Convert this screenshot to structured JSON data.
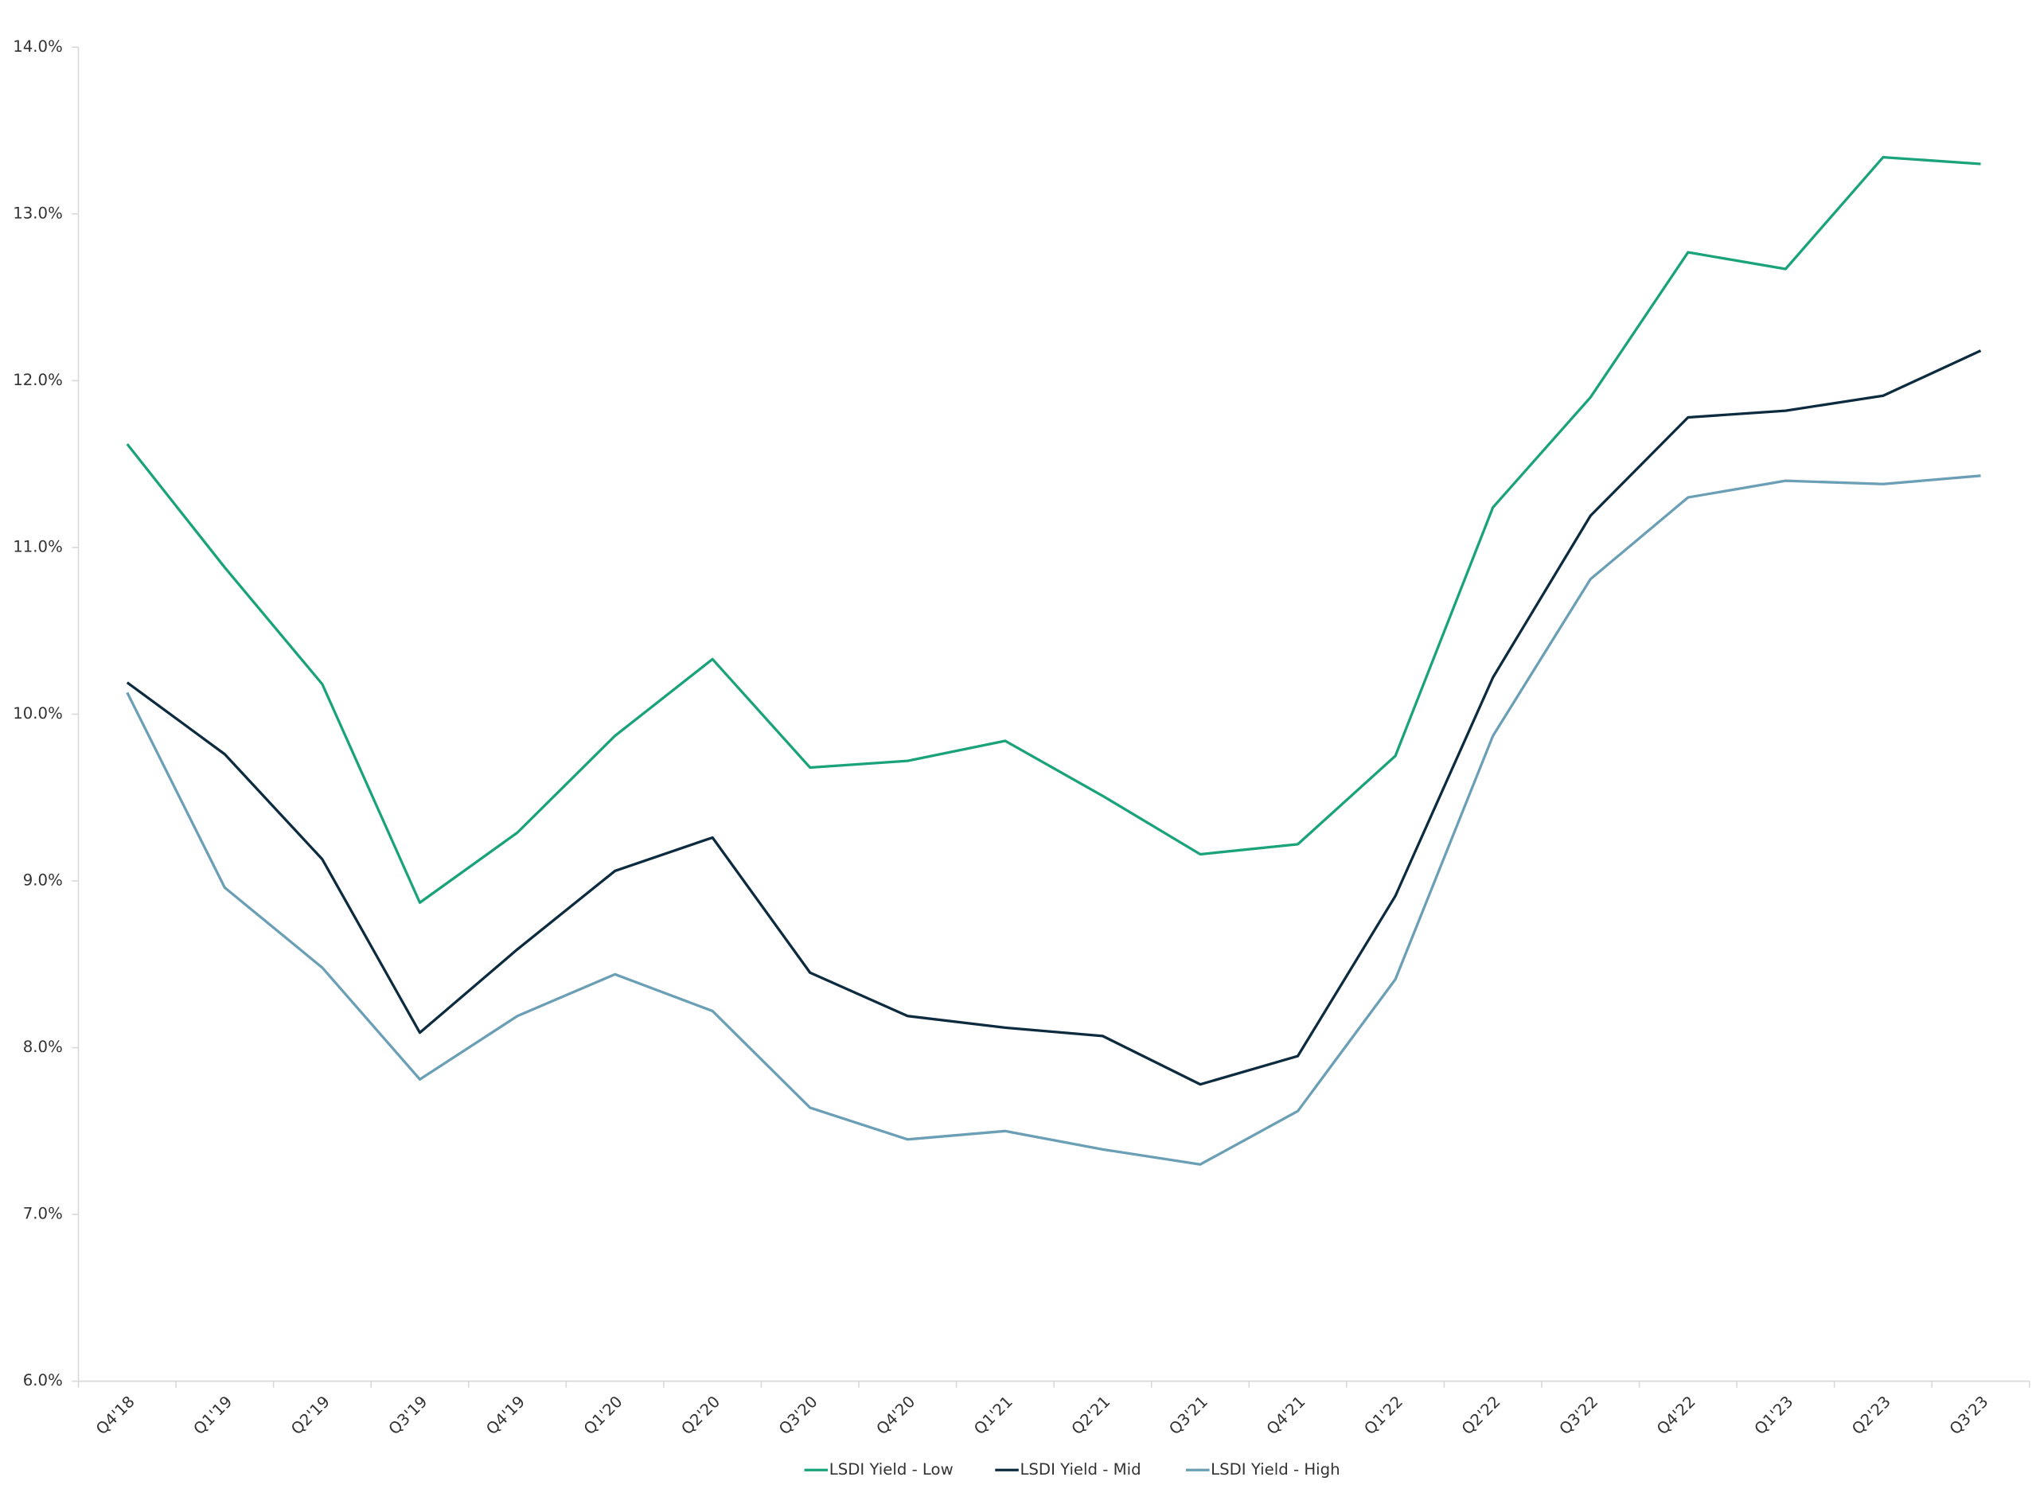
{
  "chart_data": {
    "type": "line",
    "categories": [
      "Q4'18",
      "Q1'19",
      "Q2'19",
      "Q3'19",
      "Q4'19",
      "Q1'20",
      "Q2'20",
      "Q3'20",
      "Q4'20",
      "Q1'21",
      "Q2'21",
      "Q3'21",
      "Q4'21",
      "Q1'22",
      "Q2'22",
      "Q3'22",
      "Q4'22",
      "Q1'23",
      "Q2'23",
      "Q3'23"
    ],
    "series": [
      {
        "name": "LSDI Yield - Low",
        "color": "#1aa37a",
        "values": [
          11.62,
          10.88,
          10.18,
          8.87,
          9.29,
          9.87,
          10.33,
          9.68,
          9.72,
          9.84,
          9.51,
          9.16,
          9.22,
          9.75,
          11.24,
          11.9,
          12.77,
          12.67,
          13.34,
          13.3
        ]
      },
      {
        "name": "LSDI Yield - Mid",
        "color": "#0d2b3e",
        "values": [
          10.19,
          9.76,
          9.13,
          8.09,
          8.59,
          9.06,
          9.26,
          8.45,
          8.19,
          8.12,
          8.07,
          7.78,
          7.95,
          8.91,
          10.22,
          11.19,
          11.78,
          11.82,
          11.91,
          12.18
        ]
      },
      {
        "name": "LSDI Yield - High",
        "color": "#6a9fb5",
        "values": [
          10.13,
          8.96,
          8.48,
          7.81,
          8.19,
          8.44,
          8.22,
          7.64,
          7.45,
          7.5,
          7.39,
          7.3,
          7.62,
          8.41,
          9.87,
          10.81,
          11.3,
          11.4,
          11.38,
          11.43
        ]
      }
    ],
    "ylim": [
      6,
      14
    ],
    "yticks": [
      {
        "value": 6,
        "label": "6.0%"
      },
      {
        "value": 7,
        "label": "7.0%"
      },
      {
        "value": 8,
        "label": "8.0%"
      },
      {
        "value": 9,
        "label": "9.0%"
      },
      {
        "value": 10,
        "label": "10.0%"
      },
      {
        "value": 11,
        "label": "11.0%"
      },
      {
        "value": 12,
        "label": "12.0%"
      },
      {
        "value": 13,
        "label": "13.0%"
      },
      {
        "value": 14,
        "label": "14.0%"
      }
    ],
    "legend": "bottom"
  }
}
